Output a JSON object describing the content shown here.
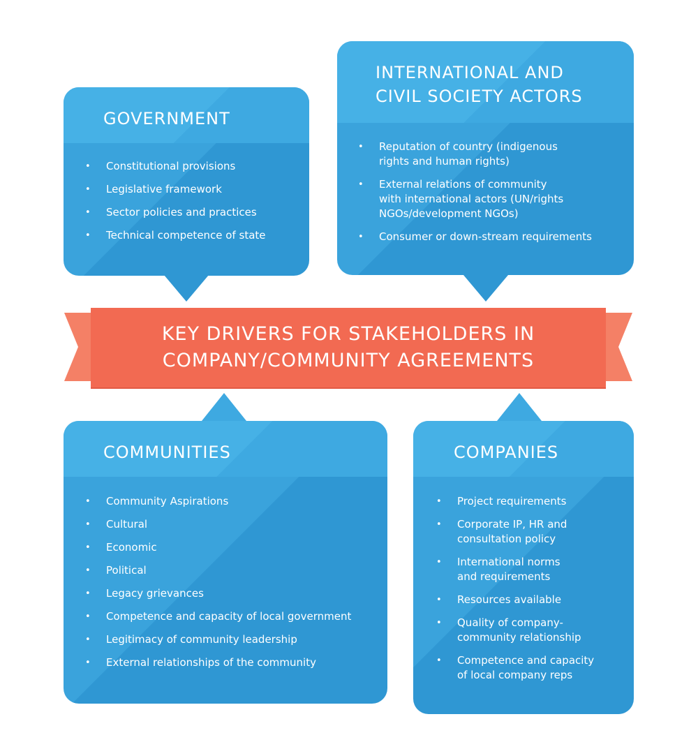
{
  "banner": {
    "title": "KEY DRIVERS FOR STAKEHOLDERS IN\nCOMPANY/COMMUNITY AGREEMENTS",
    "color": "#f26a52"
  },
  "government": {
    "title": "GOVERNMENT",
    "items": [
      "Constitutional provisions",
      "Legislative framework",
      "Sector policies and practices",
      "Technical competence of state"
    ]
  },
  "international": {
    "title": "INTERNATIONAL AND\nCIVIL SOCIETY ACTORS",
    "items": [
      "Reputation of country (indigenous\nrights and human rights)",
      "External relations of community\nwith international actors (UN/rights\nNGOs/development NGOs)",
      "Consumer or down-stream requirements"
    ]
  },
  "communities": {
    "title": "COMMUNITIES",
    "items": [
      "Community Aspirations",
      "Cultural",
      "Economic",
      "Political",
      "Legacy grievances",
      "Competence and capacity of local government",
      "Legitimacy of community leadership",
      "External relationships of the community"
    ]
  },
  "companies": {
    "title": "COMPANIES",
    "items": [
      "Project requirements",
      "Corporate IP, HR and\nconsultation policy",
      "International norms\nand requirements",
      "Resources available",
      "Quality of company-\ncommunity relationship",
      "Competence and capacity\nof local company reps"
    ]
  },
  "bullet_glyph": "•",
  "colors": {
    "box_blue": "#3aa3dc",
    "header_blue": "#46b1e6",
    "banner_red": "#f26a52",
    "ribbon_end": "#f48066"
  }
}
